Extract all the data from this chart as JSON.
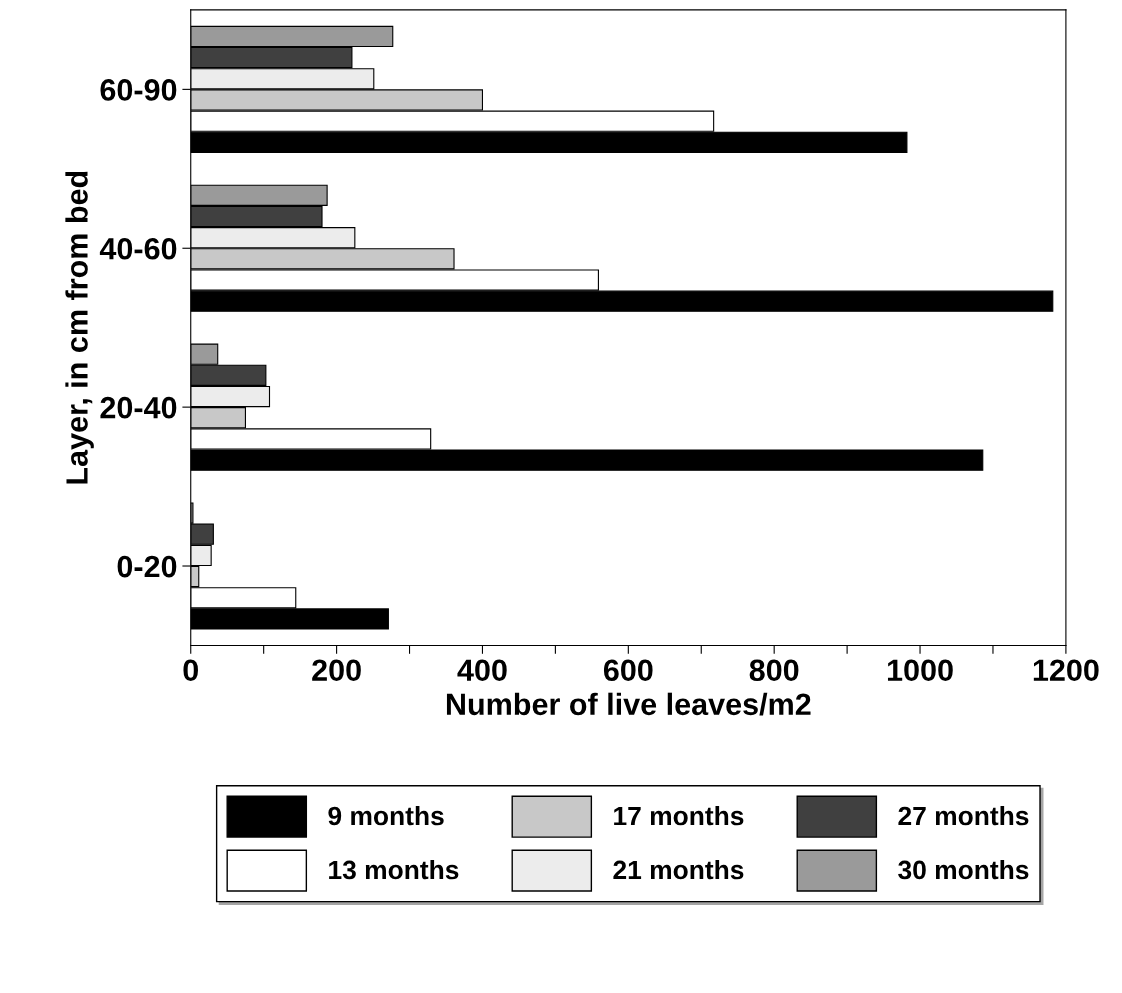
{
  "chart_data": {
    "type": "bar",
    "orientation": "horizontal",
    "xlabel": "Number of live leaves/m2",
    "ylabel": "Layer, in cm from bed",
    "categories": [
      "60-90",
      "40-60",
      "20-40",
      "0-20"
    ],
    "series": [
      {
        "name": "9 months",
        "color": "#000000",
        "values": [
          982,
          1182,
          1086,
          271
        ]
      },
      {
        "name": "13 months",
        "color": "#ffffff",
        "values": [
          717,
          559,
          329,
          144
        ]
      },
      {
        "name": "17 months",
        "color": "#c8c8c8",
        "values": [
          400,
          361,
          75,
          11
        ]
      },
      {
        "name": "21 months",
        "color": "#ececec",
        "values": [
          251,
          225,
          108,
          28
        ]
      },
      {
        "name": "27 months",
        "color": "#404040",
        "values": [
          221,
          180,
          103,
          31
        ]
      },
      {
        "name": "30 months",
        "color": "#9a9a9a",
        "values": [
          277,
          187,
          37,
          3
        ]
      }
    ],
    "xlim": [
      0,
      1200
    ],
    "xticks": [
      0,
      {
        "value": 100,
        "label": null
      },
      200,
      {
        "value": 300,
        "label": null
      },
      400,
      {
        "value": 500,
        "label": null
      },
      600,
      {
        "value": 700,
        "label": null
      },
      800,
      {
        "value": 900,
        "label": null
      },
      1000,
      {
        "value": 1100,
        "label": null
      },
      1200
    ],
    "grid": false,
    "legend": "bottom"
  }
}
